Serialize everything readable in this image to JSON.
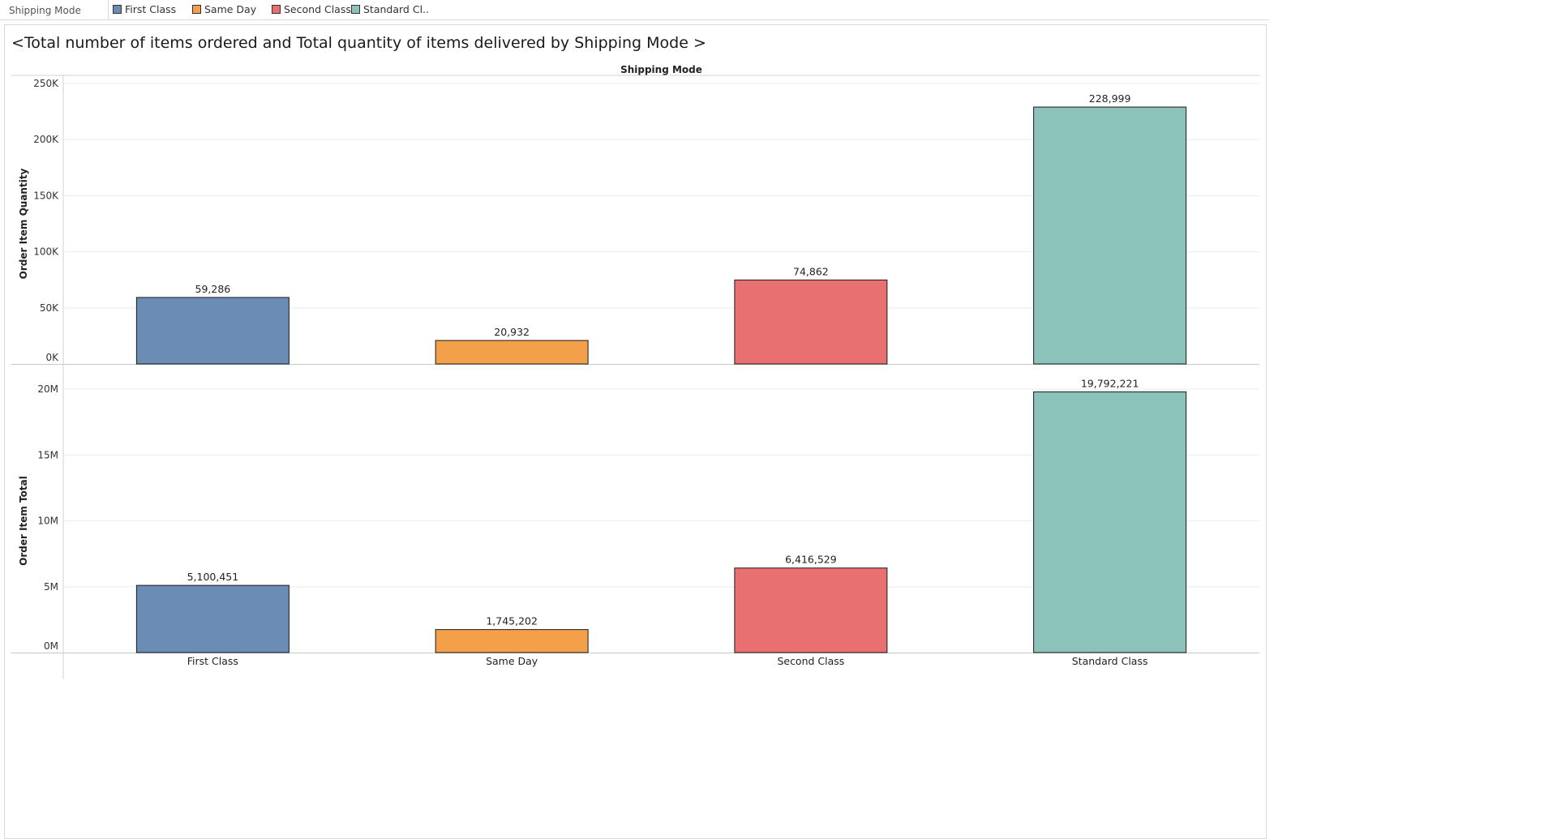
{
  "legend": {
    "field_label": "Shipping Mode",
    "items": [
      {
        "label": "First Class",
        "color": "#6b8db5"
      },
      {
        "label": "Same Day",
        "color": "#f4a04b"
      },
      {
        "label": "Second Class",
        "color": "#e87070"
      },
      {
        "label": "Standard Cl..",
        "color": "#8bc3bb"
      }
    ]
  },
  "chart_data": {
    "type": "bar",
    "title": "<Total number of items ordered and Total quantity of items delivered by Shipping Mode  >",
    "column_header": "Shipping Mode",
    "categories": [
      "First Class",
      "Same Day",
      "Second Class",
      "Standard Class"
    ],
    "colors": [
      "#6b8db5",
      "#f4a04b",
      "#e87070",
      "#8bc3bb"
    ],
    "panels": [
      {
        "ylabel": "Order Item Quantity",
        "ylim": [
          0,
          250000
        ],
        "ticks": [
          {
            "value": 0,
            "label": "0K"
          },
          {
            "value": 50000,
            "label": "50K"
          },
          {
            "value": 100000,
            "label": "100K"
          },
          {
            "value": 150000,
            "label": "150K"
          },
          {
            "value": 200000,
            "label": "200K"
          },
          {
            "value": 250000,
            "label": "250K"
          }
        ],
        "values": [
          59286,
          20932,
          74862,
          228999
        ],
        "value_labels": [
          "59,286",
          "20,932",
          "74,862",
          "228,999"
        ]
      },
      {
        "ylabel": "Order Item Total",
        "ylim": [
          0,
          20000000
        ],
        "ticks": [
          {
            "value": 0,
            "label": "0M"
          },
          {
            "value": 5000000,
            "label": "5M"
          },
          {
            "value": 10000000,
            "label": "10M"
          },
          {
            "value": 15000000,
            "label": "15M"
          },
          {
            "value": 20000000,
            "label": "20M"
          }
        ],
        "values": [
          5100451,
          1745202,
          6416529,
          19792221
        ],
        "value_labels": [
          "5,100,451",
          "1,745,202",
          "6,416,529",
          "19,792,221"
        ]
      }
    ],
    "grid": true
  }
}
